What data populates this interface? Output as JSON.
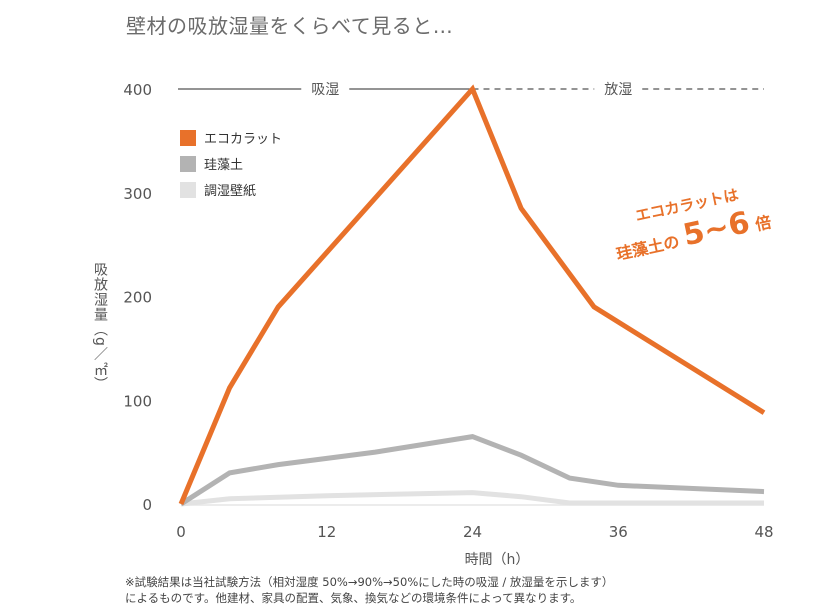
{
  "title": "壁材の吸放湿量をくらべて見ると…",
  "chart_data": {
    "type": "line",
    "title": "壁材の吸放湿量をくらべて見ると…",
    "xlabel": "時間（h）",
    "ylabel": "吸放湿量（g／㎡）",
    "xlim": [
      0,
      48
    ],
    "ylim": [
      0,
      400
    ],
    "xticks": [
      0,
      12,
      24,
      36,
      48
    ],
    "yticks": [
      0,
      100,
      200,
      300,
      400
    ],
    "x_tick_labels": [
      "0",
      "12",
      "24",
      "36",
      "48"
    ],
    "y_tick_labels": [
      "0",
      "100",
      "200",
      "300",
      "400"
    ],
    "grid": false,
    "legend_position": "top-left",
    "series": [
      {
        "name": "エコカラット",
        "color": "#e8712a",
        "points": [
          [
            0,
            0
          ],
          [
            4,
            112
          ],
          [
            8,
            190
          ],
          [
            24,
            400
          ],
          [
            28,
            285
          ],
          [
            34,
            190
          ],
          [
            48,
            88
          ]
        ]
      },
      {
        "name": "珪藻土",
        "color": "#b3b3b3",
        "points": [
          [
            0,
            0
          ],
          [
            4,
            30
          ],
          [
            8,
            38
          ],
          [
            16,
            50
          ],
          [
            24,
            65
          ],
          [
            28,
            47
          ],
          [
            32,
            25
          ],
          [
            36,
            18
          ],
          [
            48,
            12
          ]
        ]
      },
      {
        "name": "調湿壁紙",
        "color": "#e2e2e2",
        "points": [
          [
            0,
            0
          ],
          [
            4,
            5
          ],
          [
            12,
            8
          ],
          [
            24,
            11
          ],
          [
            28,
            7
          ],
          [
            32,
            1
          ],
          [
            48,
            1
          ]
        ]
      }
    ],
    "phases": [
      {
        "label": "吸湿",
        "x_range": [
          0,
          24
        ],
        "style": "solid"
      },
      {
        "label": "放湿",
        "x_range": [
          24,
          48
        ],
        "style": "dashed"
      }
    ],
    "annotation": {
      "line1": "エコカラットは",
      "line2_prefix": "珪藻土の",
      "line2_big": "5~6",
      "line2_suffix": "倍",
      "color": "#e8712a"
    }
  },
  "footnote": {
    "line1": "※試験結果は当社試験方法（相対湿度 50%→90%→50%にした時の吸湿 / 放湿量を示します）",
    "line2": "によるものです。他建材、家具の配置、気象、換気などの環境条件によって異なります。"
  }
}
